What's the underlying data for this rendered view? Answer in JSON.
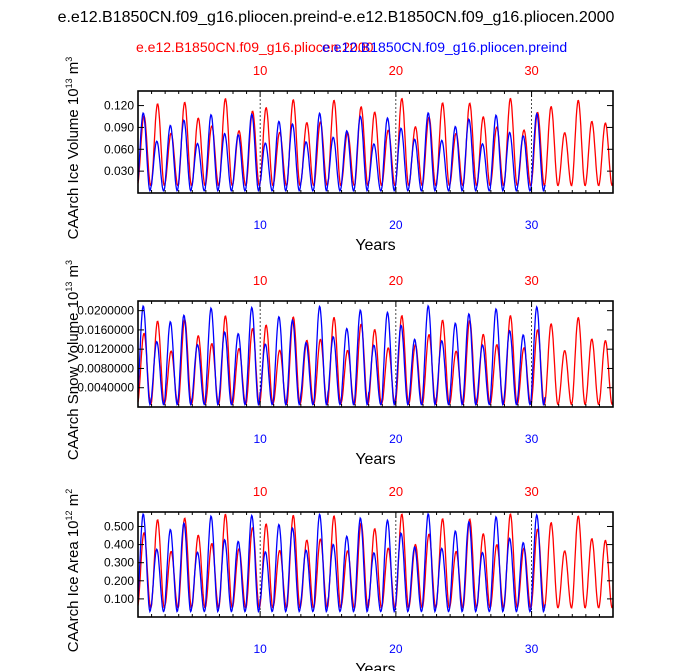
{
  "figure": {
    "title": "e.e12.B1850CN.f09_g16.pliocen.preind-e.e12.B1850CN.f09_g16.pliocen.2000",
    "legend_left": "e.e12.B1850CN.f09_g16.pliocen.2000",
    "legend_right": "e.e12.B1850CN.f09_g16.pliocen.preind",
    "colors": {
      "red": "#ff0000",
      "blue": "#0000ff",
      "axis": "#000000"
    }
  },
  "chart_data": [
    {
      "type": "line",
      "ylabel": "CAArch Ice Volume 10",
      "ylabel_exp": "13",
      "ylabel_unit": "m",
      "ylabel_unit_exp": "3",
      "xlabel": "Years",
      "xlim": [
        1,
        36
      ],
      "ylim": [
        0.0,
        0.14
      ],
      "yticks": [
        0.03,
        0.06,
        0.09,
        0.12
      ],
      "yticklabels": [
        "0.030",
        "0.060",
        "0.090",
        "0.120"
      ],
      "xticks": [
        10,
        20,
        30
      ],
      "xticklabels": [
        "10",
        "20",
        "30"
      ],
      "series": [
        {
          "name": "e.e12.B1850CN.f09_g16.pliocen.2000",
          "color": "#ff0000",
          "years": [
            1,
            36
          ],
          "amplitude": [
            0.01,
            0.13
          ]
        },
        {
          "name": "e.e12.B1850CN.f09_g16.pliocen.preind",
          "color": "#0000ff",
          "years": [
            1,
            31
          ],
          "amplitude": [
            0.003,
            0.11
          ]
        }
      ]
    },
    {
      "type": "line",
      "ylabel": "CAArch Snow Volume 10",
      "ylabel_exp": "13",
      "ylabel_unit": "m",
      "ylabel_unit_exp": "3",
      "xlabel": "Years",
      "xlim": [
        1,
        36
      ],
      "ylim": [
        0.0,
        0.022
      ],
      "yticks": [
        0.004,
        0.008,
        0.012,
        0.016,
        0.02
      ],
      "yticklabels": [
        "0.0040000",
        "0.0080000",
        "0.0120000",
        "0.0160000",
        "0.0200000"
      ],
      "xticks": [
        10,
        20,
        30
      ],
      "xticklabels": [
        "10",
        "20",
        "30"
      ],
      "series": [
        {
          "name": "e.e12.B1850CN.f09_g16.pliocen.2000",
          "color": "#ff0000",
          "years": [
            1,
            36
          ],
          "amplitude": [
            0.0005,
            0.019
          ]
        },
        {
          "name": "e.e12.B1850CN.f09_g16.pliocen.preind",
          "color": "#0000ff",
          "years": [
            1,
            31
          ],
          "amplitude": [
            0.0005,
            0.021
          ]
        }
      ]
    },
    {
      "type": "line",
      "ylabel": "CAArch Ice Area 10",
      "ylabel_exp": "12",
      "ylabel_unit": "m",
      "ylabel_unit_exp": "2",
      "xlabel": "Years",
      "xlim": [
        1,
        36
      ],
      "ylim": [
        0.0,
        0.58
      ],
      "yticks": [
        0.1,
        0.2,
        0.3,
        0.4,
        0.5
      ],
      "yticklabels": [
        "0.100",
        "0.200",
        "0.300",
        "0.400",
        "0.500"
      ],
      "xticks": [
        10,
        20,
        30
      ],
      "xticklabels": [
        "10",
        "20",
        "30"
      ],
      "series": [
        {
          "name": "e.e12.B1850CN.f09_g16.pliocen.2000",
          "color": "#ff0000",
          "years": [
            1,
            36
          ],
          "amplitude": [
            0.05,
            0.57
          ]
        },
        {
          "name": "e.e12.B1850CN.f09_g16.pliocen.preind",
          "color": "#0000ff",
          "years": [
            1,
            31
          ],
          "amplitude": [
            0.03,
            0.57
          ]
        }
      ]
    }
  ]
}
